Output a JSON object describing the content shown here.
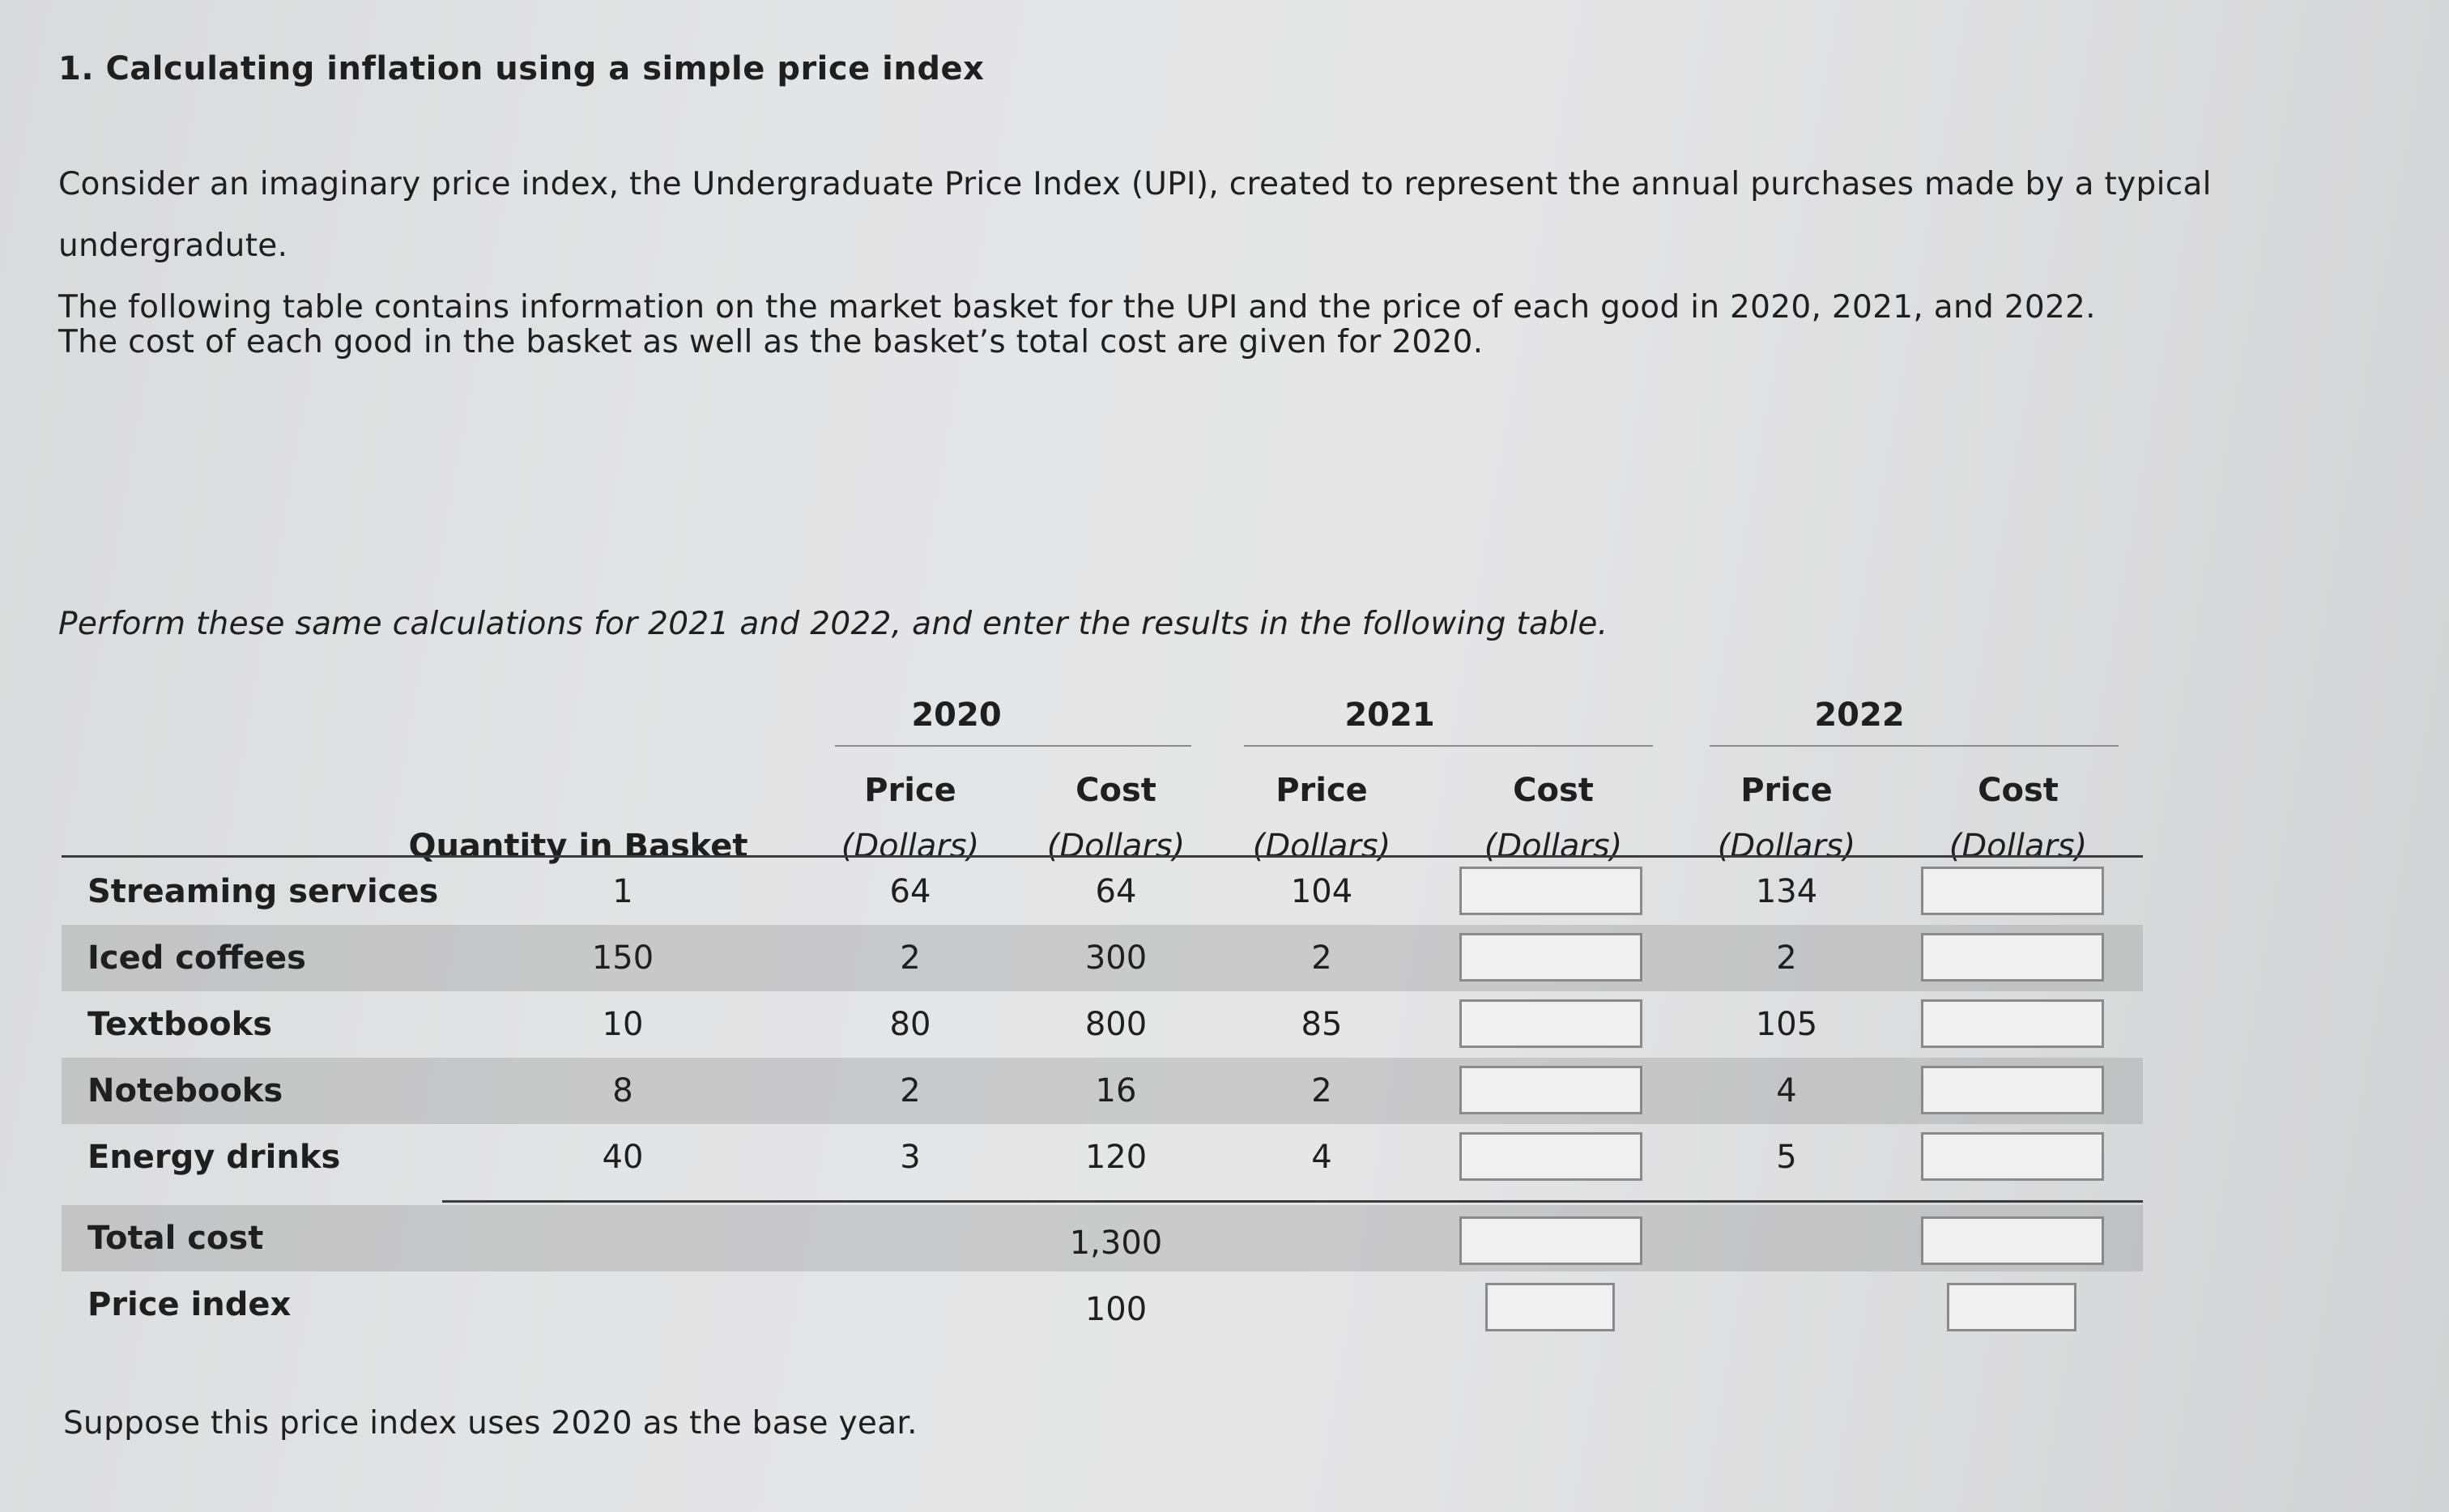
{
  "question": {
    "title": "1. Calculating inflation using a simple price index",
    "intro_line1": "Consider an imaginary price index, the Undergraduate Price Index (UPI), created to represent the annual purchases made by a typical undergradute.",
    "intro_line2": "The following table contains information on the market basket for the UPI and the price of each good in 2020, 2021, and 2022.",
    "given": "The cost of each good in the basket as well as the basket’s total cost are given for 2020.",
    "instruction": "Perform these same calculations for 2021 and 2022, and enter the results in the following table.",
    "footer": "Suppose this price index uses 2020 as the base year."
  },
  "table": {
    "years": [
      "2020",
      "2021",
      "2022"
    ],
    "qty_header": "Quantity in Basket",
    "price_label": "Price",
    "cost_label": "Cost",
    "unit_label": "(Dollars)",
    "rows": [
      {
        "name": "Streaming services",
        "qty": "1",
        "p2020": "64",
        "c2020": "64",
        "p2021": "104",
        "p2022": "134"
      },
      {
        "name": "Iced coffees",
        "qty": "150",
        "p2020": "2",
        "c2020": "300",
        "p2021": "2",
        "p2022": "2"
      },
      {
        "name": "Textbooks",
        "qty": "10",
        "p2020": "80",
        "c2020": "800",
        "p2021": "85",
        "p2022": "105"
      },
      {
        "name": "Notebooks",
        "qty": "8",
        "p2020": "2",
        "c2020": "16",
        "p2021": "2",
        "p2022": "4"
      },
      {
        "name": "Energy drinks",
        "qty": "40",
        "p2020": "3",
        "c2020": "120",
        "p2021": "4",
        "p2022": "5"
      }
    ],
    "total_label": "Total cost",
    "total_2020": "1,300",
    "index_label": "Price index",
    "index_2020": "100"
  }
}
